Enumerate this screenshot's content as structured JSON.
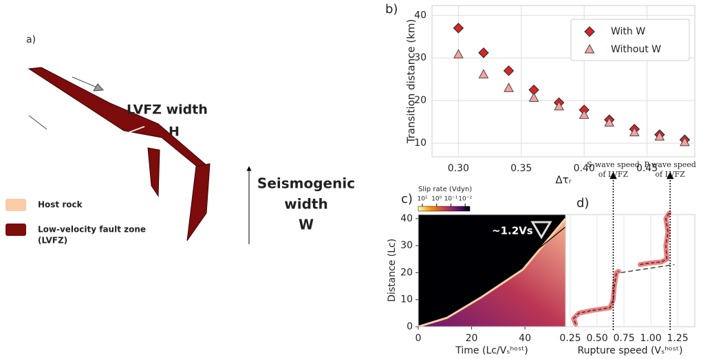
{
  "panel_a": {
    "label": "a)",
    "width_label": "LVFZ width",
    "width_symbol": "H",
    "seismogenic_lines": [
      "Seismogenic",
      "width"
    ],
    "seismogenic_symbol": "W",
    "legend": [
      {
        "name": "Host rock",
        "color": "#fccba8"
      },
      {
        "name": "Low-velocity fault zone",
        "name2": "(LVFZ)",
        "color": "#7d0c0c"
      }
    ]
  },
  "chart_data": [
    {
      "type": "scatter",
      "panel": "b)",
      "ylabel": "Transition distance (km)",
      "xlabel": "Δτᵣ",
      "x": [
        0.3,
        0.32,
        0.34,
        0.36,
        0.38,
        0.4,
        0.42,
        0.44,
        0.46,
        0.48
      ],
      "series": [
        {
          "name": "With W",
          "color": "#d62728",
          "marker": "diamond",
          "values": [
            37,
            31.2,
            27,
            22.5,
            19.5,
            17.8,
            15.5,
            13.3,
            12,
            10.8
          ]
        },
        {
          "name": "Without W",
          "color": "#f4a3a0",
          "marker": "triangle",
          "values": [
            30.8,
            26.1,
            22.9,
            20.6,
            18.6,
            16.6,
            14.8,
            12.5,
            11.5,
            10.2
          ]
        }
      ],
      "xlim": [
        0.279,
        0.488
      ],
      "ylim": [
        6.8,
        42.3
      ],
      "xticks": [
        {
          "value": 0.3,
          "label": "0.30"
        },
        0.35,
        {
          "value": 0.4,
          "label": "0.40"
        },
        0.45
      ],
      "yticks": [
        10,
        20,
        30,
        40
      ],
      "grid": true,
      "legend": "upper right"
    },
    {
      "type": "heatmap",
      "panel": "c)",
      "ylabel": "Distance (Lc)",
      "xlabel": "Time (Lc/Vₛʰᵒˢᵗ)",
      "colorbar_label": "Slip rate (Vdyn)",
      "clim": [
        19.5,
        0.0047
      ],
      "log": true,
      "cticks": [
        {
          "value": 10,
          "label": "10¹"
        },
        {
          "value": 1,
          "label": "10⁰"
        },
        {
          "value": 0.1,
          "label": "10⁻¹"
        },
        {
          "value": 0.01,
          "label": "10⁻²"
        }
      ],
      "annotation": "~1.2Vs",
      "xlim": [
        0,
        55.2
      ],
      "ylim": [
        0,
        41.5
      ],
      "xticks": [
        0,
        20,
        40
      ],
      "yticks": [
        0,
        10,
        20,
        30,
        40
      ]
    },
    {
      "type": "line",
      "panel": "d)",
      "xlabel": "Rupture speed (Vₛʰᵒˢᵗ)",
      "x": [
        0.3,
        0.28,
        0.33,
        0.45,
        0.62,
        0.65,
        0.66,
        0.68,
        0.7,
        null,
        0.9,
        0.98,
        1.1,
        1.15,
        1.14,
        1.16,
        1.14,
        1.17
      ],
      "values": [
        1,
        3,
        5,
        6,
        7,
        10,
        15,
        20,
        20.5,
        null,
        23,
        23.5,
        24,
        25,
        30,
        35,
        40,
        42
      ],
      "color": "#f08080",
      "connector": {
        "x": [
          0.72,
          1.22
        ],
        "values": [
          20,
          23
        ]
      },
      "vlines": [
        {
          "value": 0.65,
          "label": [
            "S-wave speed",
            "of LVFZ"
          ]
        },
        {
          "value": 1.18,
          "label": [
            "P-wave speed",
            "of LVFZ"
          ]
        }
      ],
      "xlim": [
        0.205,
        1.41
      ],
      "ylim": [
        0,
        41.5
      ],
      "xticks": [
        0.25,
        {
          "value": 0.5,
          "label": "0.50"
        },
        0.75,
        {
          "value": 1,
          "label": "1.00"
        },
        1.25
      ],
      "grid": true
    }
  ]
}
